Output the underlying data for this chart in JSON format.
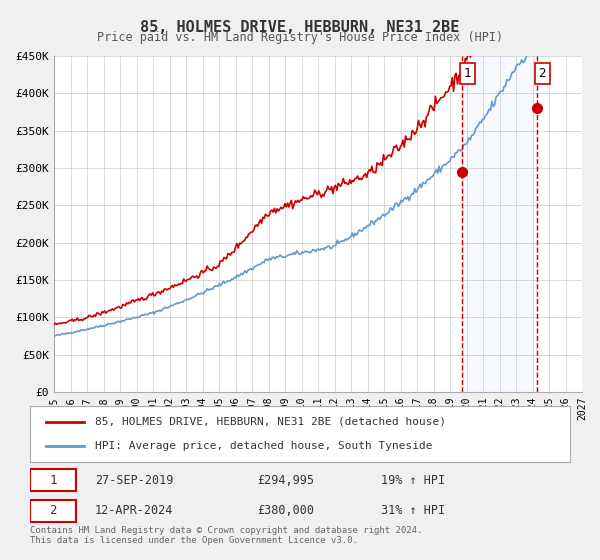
{
  "title": "85, HOLMES DRIVE, HEBBURN, NE31 2BE",
  "subtitle": "Price paid vs. HM Land Registry's House Price Index (HPI)",
  "xlabel": "",
  "ylabel": "",
  "ylim": [
    0,
    450000
  ],
  "xlim_start": 1995,
  "xlim_end": 2027,
  "yticks": [
    0,
    50000,
    100000,
    150000,
    200000,
    250000,
    300000,
    350000,
    400000,
    450000
  ],
  "ytick_labels": [
    "£0",
    "£50K",
    "£100K",
    "£150K",
    "£200K",
    "£250K",
    "£300K",
    "£350K",
    "£400K",
    "£450K"
  ],
  "xticks": [
    1995,
    1996,
    1997,
    1998,
    1999,
    2000,
    2001,
    2002,
    2003,
    2004,
    2005,
    2006,
    2007,
    2008,
    2009,
    2010,
    2011,
    2012,
    2013,
    2014,
    2015,
    2016,
    2017,
    2018,
    2019,
    2020,
    2021,
    2022,
    2023,
    2024,
    2025,
    2026,
    2027
  ],
  "marker1_x": 2019.74,
  "marker1_y": 294995,
  "marker2_x": 2024.28,
  "marker2_y": 380000,
  "vline1_x": 2019.74,
  "vline2_x": 2024.28,
  "shade_start": 2019.74,
  "shade_end": 2024.28,
  "legend_line1": "85, HOLMES DRIVE, HEBBURN, NE31 2BE (detached house)",
  "legend_line2": "HPI: Average price, detached house, South Tyneside",
  "table_row1_num": "1",
  "table_row1_date": "27-SEP-2019",
  "table_row1_price": "£294,995",
  "table_row1_hpi": "19% ↑ HPI",
  "table_row2_num": "2",
  "table_row2_date": "12-APR-2024",
  "table_row2_price": "£380,000",
  "table_row2_hpi": "31% ↑ HPI",
  "footnote1": "Contains HM Land Registry data © Crown copyright and database right 2024.",
  "footnote2": "This data is licensed under the Open Government Licence v3.0.",
  "red_line_color": "#cc0000",
  "blue_line_color": "#6699cc",
  "shade_color": "#ddeeff",
  "grid_color": "#cccccc",
  "bg_color": "#f5f5f5",
  "plot_bg_color": "#ffffff",
  "marker_color": "#cc0000"
}
